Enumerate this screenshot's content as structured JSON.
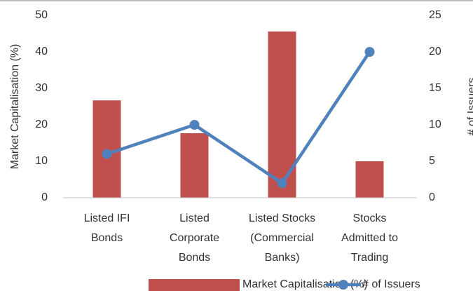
{
  "chart_data": {
    "type": "bar_line",
    "categories": [
      [
        "Listed IFI",
        "Bonds"
      ],
      [
        "Listed",
        "Corporate",
        "Bonds"
      ],
      [
        "Listed Stocks",
        "(Commercial",
        "Banks)"
      ],
      [
        "Stocks",
        "Admitted to",
        "Trading"
      ]
    ],
    "series": [
      {
        "name": "Market Capitalisation (%)",
        "type": "bar",
        "color": "#c0504d",
        "values": [
          26.7,
          17.7,
          45.6,
          10
        ]
      },
      {
        "name": "# of Issuers",
        "type": "line",
        "axis": "y2",
        "color": "#4f81bd",
        "values": [
          6,
          10,
          2,
          20
        ]
      }
    ],
    "ylabel": "Market Capitalisation (%)",
    "y2label": "# of Issuers",
    "ylim": [
      0,
      50
    ],
    "yticks": [
      0,
      10,
      20,
      30,
      40,
      50
    ],
    "y2lim": [
      0,
      25
    ],
    "y2ticks": [
      0,
      5,
      10,
      15,
      20,
      25
    ],
    "legend": "bottom"
  }
}
